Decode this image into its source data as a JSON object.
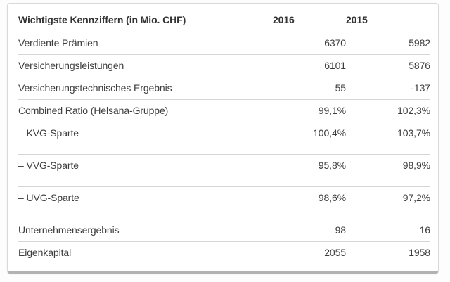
{
  "colors": {
    "card_background": "#ffffff",
    "card_border": "#d9d9d9",
    "card_bottom_edge": "#b2b2b2",
    "row_line": "#d6d6d6",
    "header_line": "#c4c4c4",
    "text": "#3d3d3d"
  },
  "chart_data": {
    "type": "table",
    "title": "Wichtigste Kennziffern (in Mio. CHF)",
    "columns": [
      "Wichtigste Kennziffern (in Mio. CHF)",
      "2016",
      "2015"
    ],
    "rows": [
      [
        "Verdiente Prämien",
        "6370",
        "5982"
      ],
      [
        "Versicherungsleistungen",
        "6101",
        "5876"
      ],
      [
        "Versicherungstechnisches Ergebnis",
        "55",
        "-137"
      ],
      [
        "Combined Ratio (Helsana-Gruppe)",
        "99,1%",
        "102,3%"
      ],
      [
        "– KVG-Sparte",
        "100,4%",
        "103,7%"
      ],
      [
        "– VVG-Sparte",
        "95,8%",
        "98,9%"
      ],
      [
        "– UVG-Sparte",
        "98,6%",
        "97,2%"
      ],
      [
        "Unternehmensergebnis",
        "98",
        "16"
      ],
      [
        "Eigenkapital",
        "2055",
        "1958"
      ]
    ],
    "tall_rows": [
      4,
      5,
      6
    ],
    "units": "Mio. CHF",
    "layout": {
      "value_alignment": "right",
      "grid": "horizontal-rules-only",
      "legend": "none"
    }
  }
}
